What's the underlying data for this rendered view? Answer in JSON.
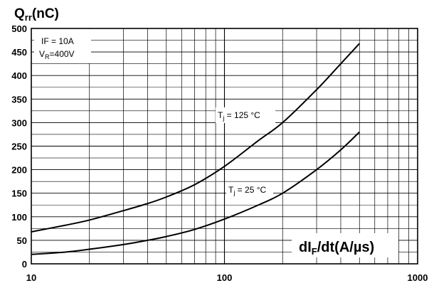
{
  "chart_data": {
    "type": "line",
    "x_scale": "log",
    "xlim": [
      10,
      1000
    ],
    "ylim": [
      0,
      500
    ],
    "xticks": [
      "10",
      "100",
      "1000"
    ],
    "yticks": [
      "0",
      "50",
      "100",
      "150",
      "200",
      "250",
      "300",
      "350",
      "400",
      "450",
      "500"
    ],
    "ylabel": {
      "main": "Q",
      "sub": "rr",
      "tail": "(nC)"
    },
    "xlabel": {
      "main": "dI",
      "sub": "F",
      "tail": "/dt(A/µs)"
    },
    "grid": true,
    "conditions": [
      {
        "main": "IF = 10A",
        "sub": "",
        "tail": ""
      },
      {
        "main": "V",
        "sub": "R",
        "tail": "=400V"
      }
    ],
    "series": [
      {
        "name": {
          "main": "T",
          "sub": "j",
          "tail": " = 125 °C"
        },
        "x": [
          10,
          15,
          20,
          30,
          40,
          50,
          70,
          100,
          150,
          200,
          300,
          400,
          500
        ],
        "y": [
          68,
          82,
          93,
          113,
          128,
          142,
          168,
          207,
          262,
          300,
          370,
          425,
          468
        ]
      },
      {
        "name": {
          "main": "T",
          "sub": "j",
          "tail": " = 25 °C"
        },
        "x": [
          10,
          15,
          20,
          30,
          40,
          50,
          70,
          100,
          150,
          200,
          300,
          400,
          500
        ],
        "y": [
          20,
          25,
          31,
          41,
          50,
          58,
          73,
          95,
          125,
          150,
          200,
          242,
          280
        ]
      }
    ]
  }
}
